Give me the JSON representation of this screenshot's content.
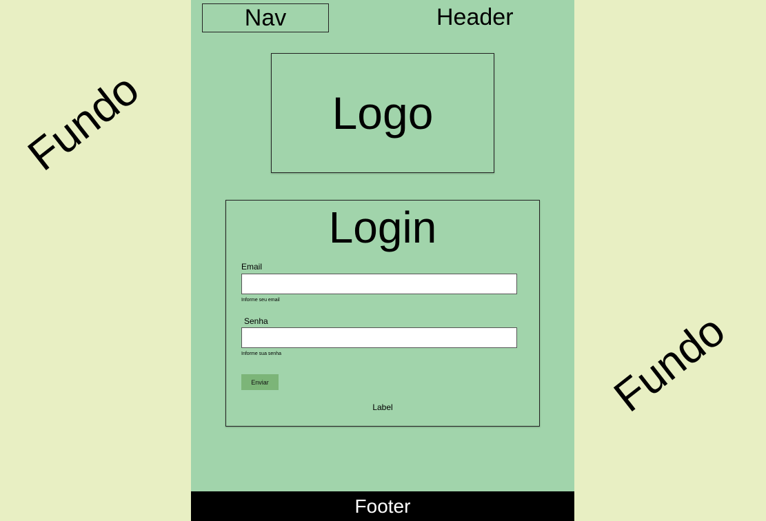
{
  "background": {
    "label_left": "Fundo",
    "label_right": "Fundo",
    "color": "#e8efc3"
  },
  "page": {
    "color": "#a1d4ab"
  },
  "nav": {
    "label": "Nav"
  },
  "header": {
    "label": "Header"
  },
  "logo": {
    "label": "Logo"
  },
  "login": {
    "title": "Login",
    "email": {
      "label": "Email",
      "value": "",
      "helper": "Informe seu email"
    },
    "senha": {
      "label": "Senha",
      "value": "",
      "helper": "Informe sua senha"
    },
    "submit_label": "Enviar",
    "submit_color": "#7cb578",
    "bottom_label": "Label"
  },
  "footer": {
    "label": "Footer",
    "color": "#000000"
  }
}
